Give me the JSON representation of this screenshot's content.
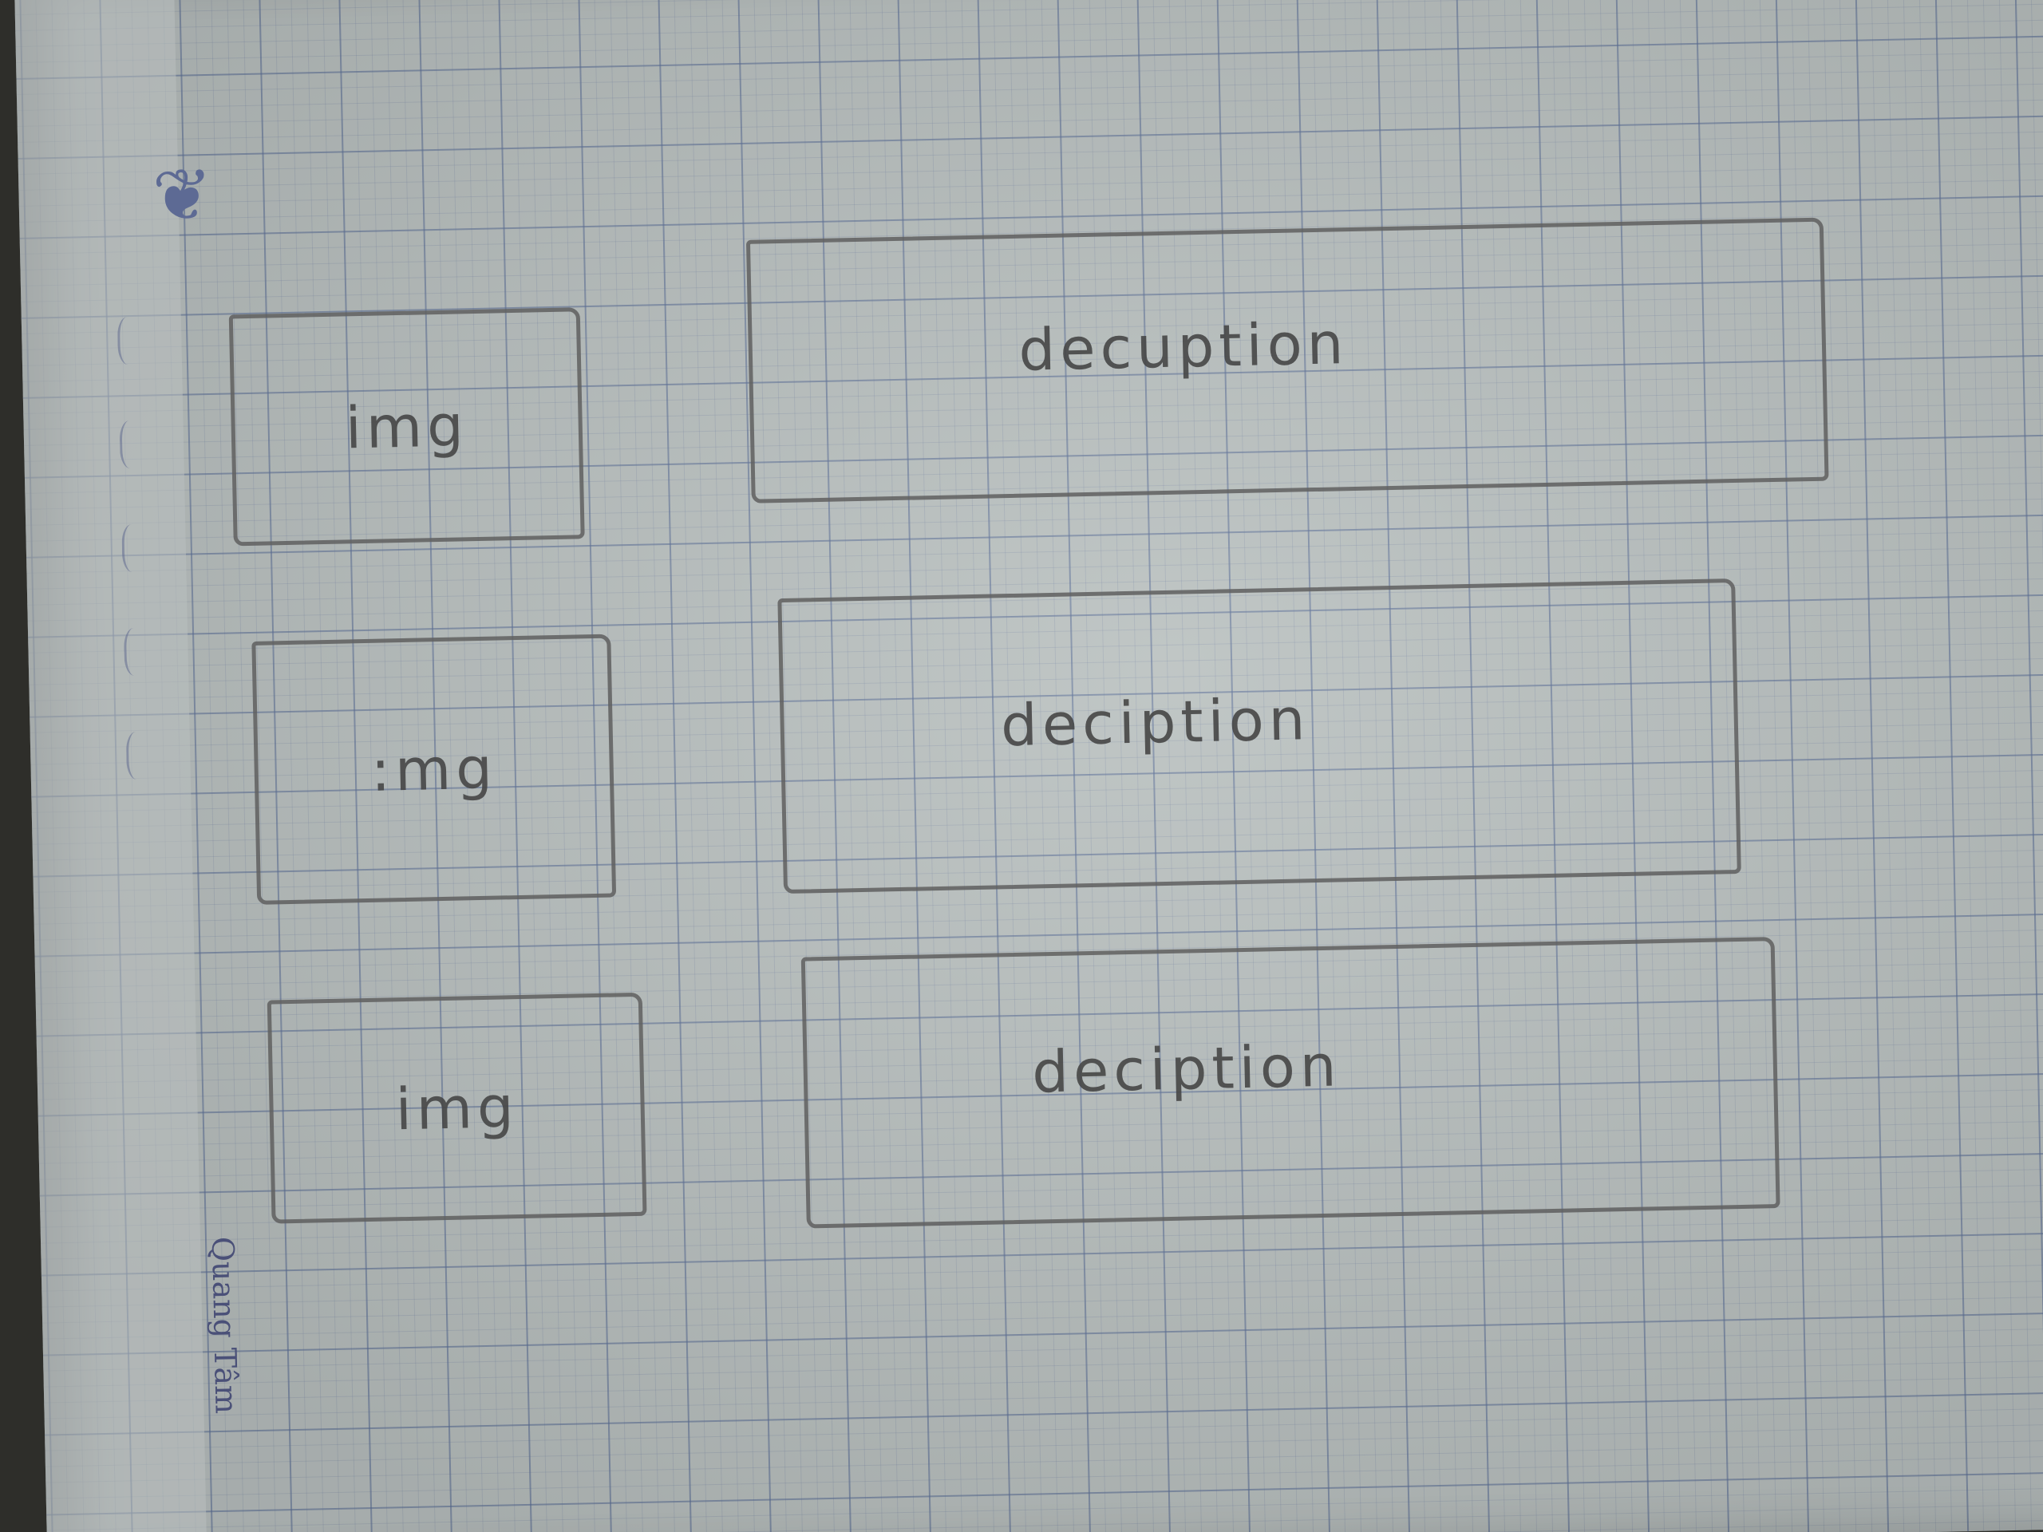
{
  "sketch": {
    "rows": [
      {
        "image_label": "img",
        "description_label": "decuption"
      },
      {
        "image_label": ":mg",
        "description_label": "deciption"
      },
      {
        "image_label": "img",
        "description_label": "deciption"
      }
    ]
  },
  "notebook": {
    "brand": "Quang Tâm"
  }
}
